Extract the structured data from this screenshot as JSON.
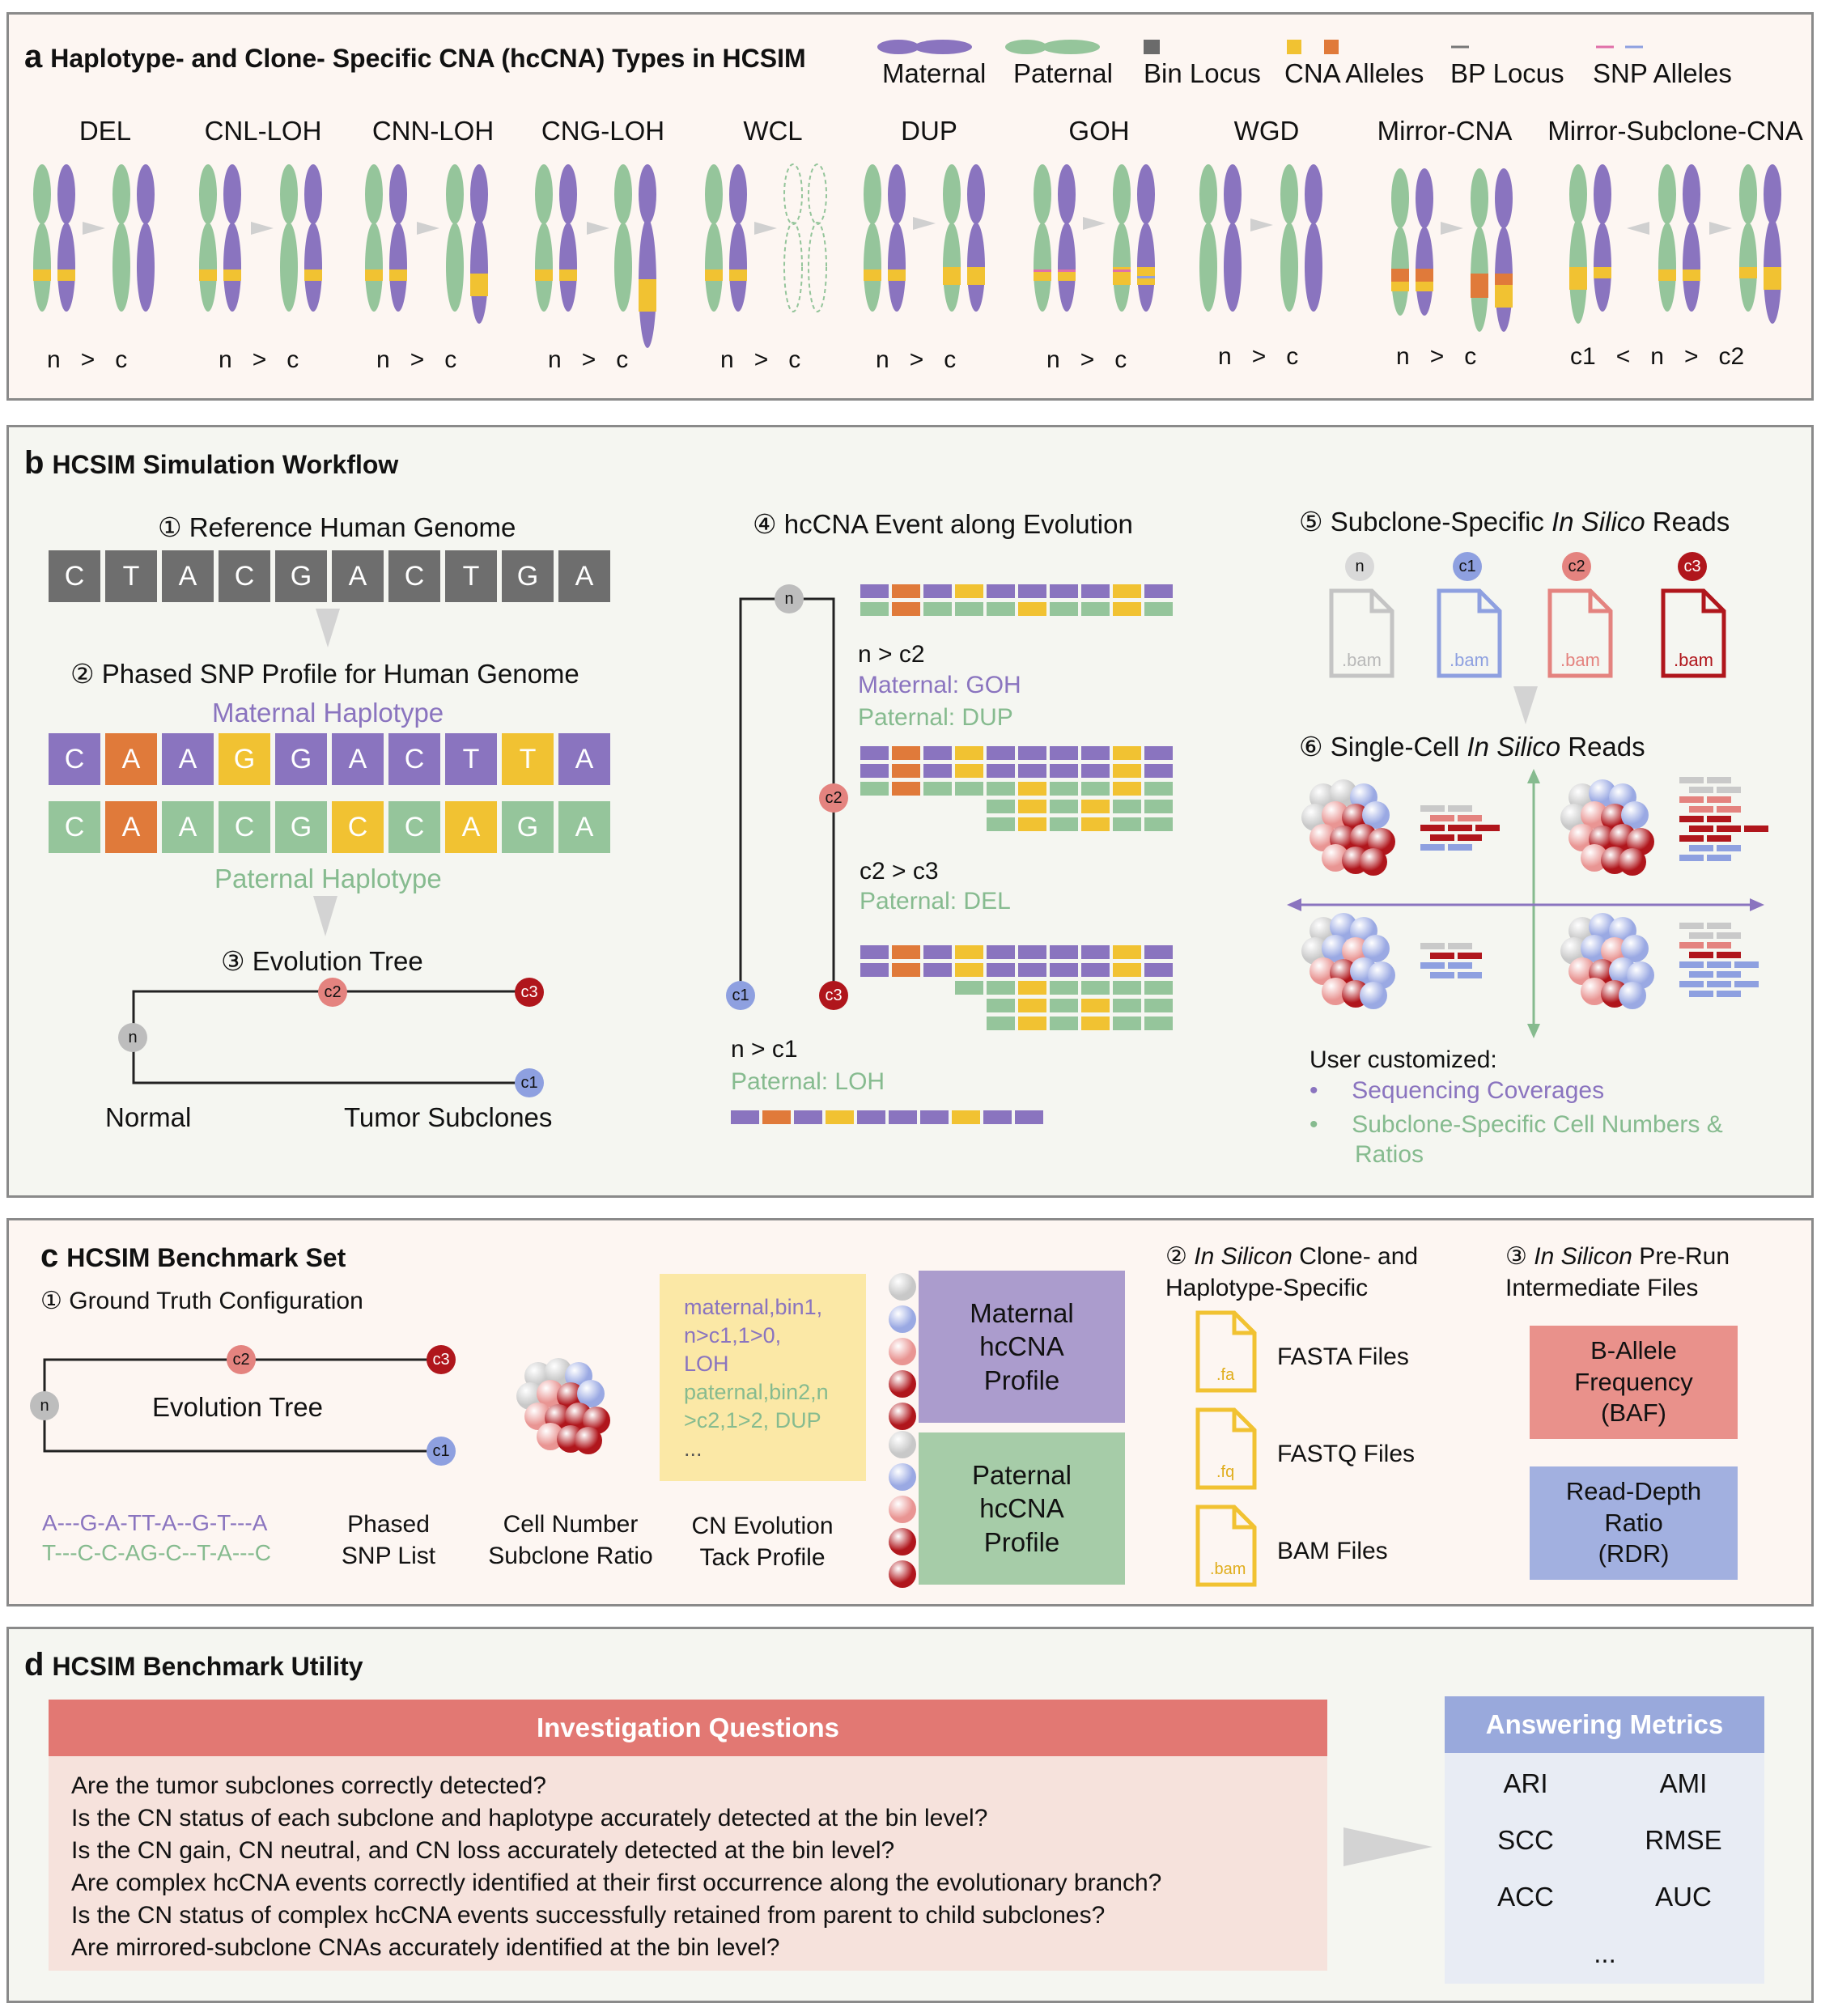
{
  "panel_a": {
    "letter": "a",
    "title": "Haplotype- and Clone- Specific CNA (hcCNA) Types in HCSIM",
    "legend": [
      {
        "label": "Maternal",
        "color": "#8a74bf"
      },
      {
        "label": "Paternal",
        "color": "#95c59b"
      },
      {
        "label": "Bin Locus",
        "color": "#6b6b6b"
      },
      {
        "label": "CNA Alleles",
        "color": "#f1c232"
      },
      {
        "label": "BP Locus",
        "color": "#777777"
      },
      {
        "label": "SNP Alleles",
        "color": "#e06fa8"
      }
    ],
    "types": [
      {
        "name": "DEL",
        "caption": [
          "n",
          ">",
          "c"
        ]
      },
      {
        "name": "CNL-LOH",
        "caption": [
          "n",
          ">",
          "c"
        ]
      },
      {
        "name": "CNN-LOH",
        "caption": [
          "n",
          ">",
          "c"
        ]
      },
      {
        "name": "CNG-LOH",
        "caption": [
          "n",
          ">",
          "c"
        ]
      },
      {
        "name": "WCL",
        "caption": [
          "n",
          ">",
          "c"
        ]
      },
      {
        "name": "DUP",
        "caption": [
          "n",
          ">",
          "c"
        ]
      },
      {
        "name": "GOH",
        "caption": [
          "n",
          ">",
          "c"
        ]
      },
      {
        "name": "WGD",
        "caption": [
          "n",
          ">",
          "c"
        ]
      },
      {
        "name": "Mirror-CNA",
        "caption": [
          "n",
          ">",
          "c"
        ]
      },
      {
        "name": "Mirror-Subclone-CNA",
        "caption": [
          "c1",
          "<",
          "n",
          ">",
          "c2"
        ]
      }
    ]
  },
  "panel_b": {
    "letter": "b",
    "title": "HCSIM Simulation Workflow",
    "step1": "① Reference Human Genome",
    "reference_seq": [
      "C",
      "T",
      "A",
      "C",
      "G",
      "A",
      "C",
      "T",
      "G",
      "A"
    ],
    "step2": "② Phased SNP Profile for Human Genome",
    "maternal_label": "Maternal Haplotype",
    "maternal_seq": [
      "C",
      "A",
      "A",
      "G",
      "G",
      "A",
      "C",
      "T",
      "T",
      "A"
    ],
    "paternal_seq": [
      "C",
      "A",
      "A",
      "C",
      "G",
      "C",
      "C",
      "A",
      "G",
      "A"
    ],
    "paternal_label": "Paternal Haplotype",
    "step3": "③ Evolution Tree",
    "tree_nodes": {
      "n": "n",
      "c1": "c1",
      "c2": "c2",
      "c3": "c3"
    },
    "normal_label": "Normal",
    "tumor_label": "Tumor Subclones",
    "step4": "④ hcCNA Event along Evolution",
    "event1_title": "n > c2",
    "event1_maternal": "Maternal: GOH",
    "event1_paternal": "Paternal: DUP",
    "event2_title": "c2 > c3",
    "event2_paternal": "Paternal: DEL",
    "event3_title": "n > c1",
    "event3_paternal": "Paternal: LOH",
    "step5_prefix": "⑤ Subclone-Specific ",
    "step5_italic": "In Silico",
    "step5_suffix": " Reads",
    "bam_files": [
      {
        "node": "n",
        "label": ".bam",
        "color": "#b9b9b9"
      },
      {
        "node": "c1",
        "label": ".bam",
        "color": "#8ea0e0"
      },
      {
        "node": "c2",
        "label": ".bam",
        "color": "#e4837f"
      },
      {
        "node": "c3",
        "label": ".bam",
        "color": "#b0161c"
      }
    ],
    "step6_prefix": "⑥ Single-Cell ",
    "step6_italic": "In Silico",
    "step6_suffix": " Reads",
    "user_customized": "User customized:",
    "custom_items": [
      "Sequencing Coverages",
      "Subclone-Specific Cell Numbers &",
      "Ratios"
    ]
  },
  "panel_c": {
    "letter": "c",
    "title": "HCSIM Benchmark Set",
    "step1": "① Ground Truth Configuration",
    "tree_label": "Evolution Tree",
    "snp_maternal": "A---G-A-TT-A--G-T---A",
    "snp_paternal": "T---C-C-AG-C--T-A---C",
    "snp_label": [
      "Phased",
      "SNP List"
    ],
    "cell_label": [
      "Cell Number",
      "Subclone Ratio"
    ],
    "cn_config_lines": [
      "maternal,bin1,",
      "n>c1,1>0,",
      "LOH",
      "paternal,bin2,n",
      ">c2,1>2, DUP",
      "..."
    ],
    "cn_label": [
      "CN Evolution",
      "Tack Profile"
    ],
    "maternal_profile": [
      "Maternal",
      "hcCNA",
      "Profile"
    ],
    "paternal_profile": [
      "Paternal",
      "hcCNA",
      "Profile"
    ],
    "step2_prefix": "② ",
    "step2_italic": "In Silicon",
    "step2_line1_suffix": " Clone- and",
    "step2_line2": "Haplotype-Specific",
    "files": [
      {
        "ext": ".fa",
        "label": "FASTA Files"
      },
      {
        "ext": ".fq",
        "label": "FASTQ Files"
      },
      {
        "ext": ".bam",
        "label": "BAM Files"
      }
    ],
    "step3_prefix": "③ ",
    "step3_italic": "In Silicon",
    "step3_line1_suffix": " Pre-Run",
    "step3_line2": "Intermediate Files",
    "baf": [
      "B-Allele",
      "Frequency",
      "(BAF)"
    ],
    "rdr": [
      "Read-Depth",
      "Ratio",
      "(RDR)"
    ]
  },
  "panel_d": {
    "letter": "d",
    "title": "HCSIM Benchmark Utility",
    "questions_header": "Investigation Questions",
    "questions": [
      "Are the tumor subclones correctly detected?",
      "Is the CN status of each subclone and haplotype accurately detected at the bin level?",
      "Is the CN gain, CN neutral, and CN loss accurately detected at the bin level?",
      "Are complex hcCNA events correctly identified at their first occurrence along the evolutionary branch?",
      "Is the CN status of complex hcCNA events successfully retained from parent to child subclones?",
      "Are mirrored-subclone CNAs accurately identified at the bin level?"
    ],
    "metrics_header": "Answering Metrics",
    "metrics": [
      "ARI",
      "AMI",
      "SCC",
      "RMSE",
      "ACC",
      "AUC",
      "..."
    ]
  },
  "colors": {
    "maternal": "#8a74bf",
    "paternal": "#95c59b",
    "cna": "#f1c232",
    "orange": "#e07a3a",
    "gray": "#6e6e6e",
    "node_n": "#bdbdbd",
    "node_c1": "#8ea0e0",
    "node_c2": "#e4837f",
    "node_c3": "#b0161c"
  }
}
